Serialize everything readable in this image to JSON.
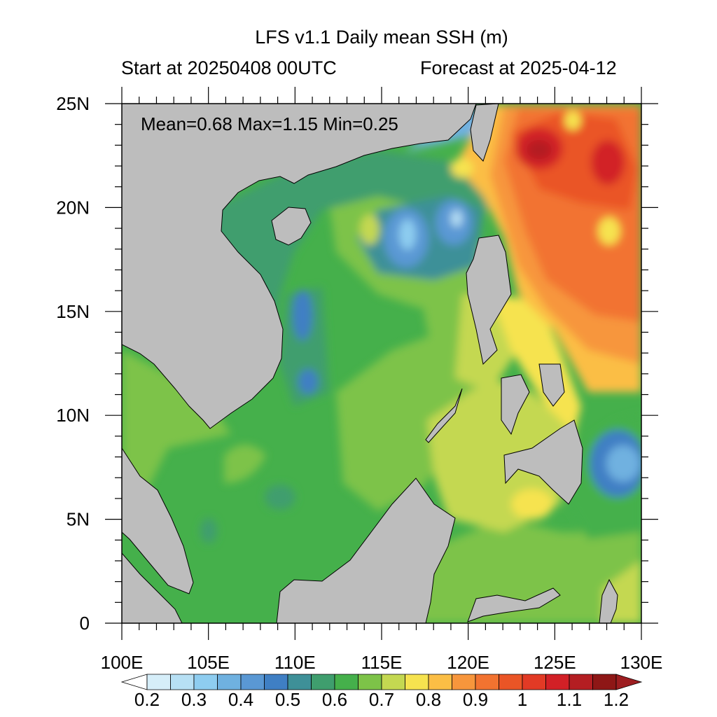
{
  "title": "LFS v1.1 Daily mean SSH (m)",
  "subtitle_left": "Start at 20250408 00UTC",
  "subtitle_right": "Forecast at 2025-04-12",
  "stats": "Mean=0.68  Max=1.15  Min=0.25",
  "map": {
    "lon_range": [
      100,
      130
    ],
    "lat_range": [
      0,
      25
    ],
    "lon_labels": [
      "100E",
      "105E",
      "110E",
      "115E",
      "120E",
      "125E",
      "130E"
    ],
    "lat_labels": [
      "0",
      "5N",
      "10N",
      "15N",
      "20N",
      "25N"
    ],
    "land_color": "#bdbdbd"
  },
  "colorbar": {
    "levels": [
      0.2,
      0.25,
      0.3,
      0.35,
      0.4,
      0.45,
      0.5,
      0.55,
      0.6,
      0.65,
      0.7,
      0.75,
      0.8,
      0.85,
      0.9,
      0.95,
      1.0,
      1.05,
      1.1,
      1.15,
      1.2
    ],
    "labels": [
      "0.2",
      "0.3",
      "0.4",
      "0.5",
      "0.6",
      "0.7",
      "0.8",
      "0.9",
      "1",
      "1.1",
      "1.2"
    ],
    "colors": [
      "#ffffff",
      "#d6eef9",
      "#b7e0f4",
      "#8ecdf0",
      "#6fb1e0",
      "#5a98d4",
      "#3f7fc4",
      "#3e9098",
      "#3f9e6e",
      "#45b04b",
      "#7dc348",
      "#c4d851",
      "#f6e34f",
      "#fbbe45",
      "#f7963c",
      "#f27330",
      "#ea5526",
      "#e23a25",
      "#d22026",
      "#b41e22",
      "#8e1716",
      "#9d1d20"
    ]
  }
}
